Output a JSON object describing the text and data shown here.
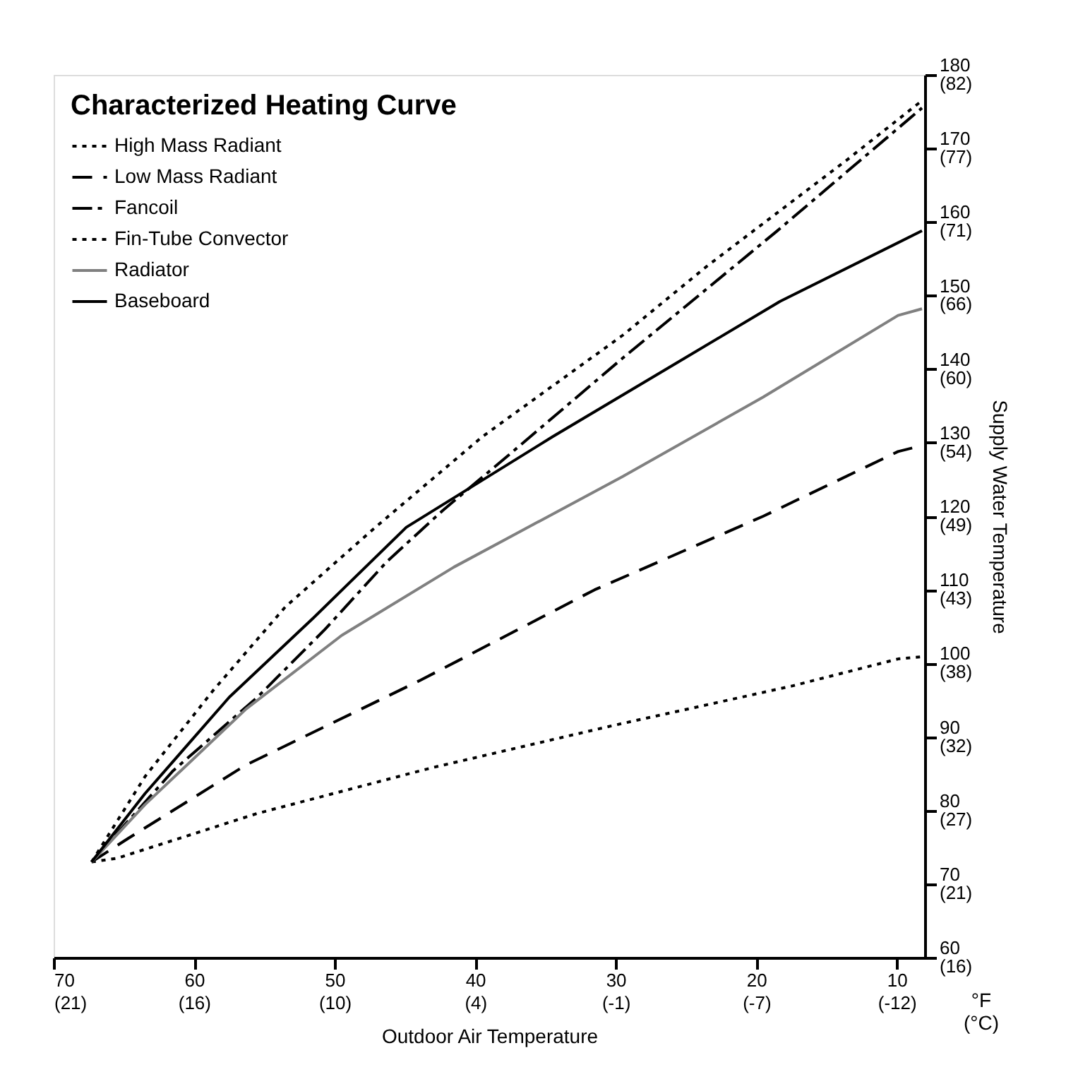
{
  "chart_data": {
    "type": "line",
    "legend_title": "Characterized Heating Curve",
    "xlabel": "Outdoor Air Temperature",
    "y2label": "Supply Water Temperature",
    "annotations": [
      "°F (°C)"
    ],
    "xlim": [
      70,
      8
    ],
    "xticks": [
      70,
      60,
      50,
      40,
      30,
      20,
      10
    ],
    "x2lim": [
      21.11,
      -13.33
    ],
    "x2ticks": [
      {
        "value": 21.11,
        "label": "(21)"
      },
      {
        "value": 15.56,
        "label": "(16)"
      },
      {
        "value": 10,
        "label": "(10)"
      },
      {
        "value": 4.44,
        "label": "(4)"
      },
      {
        "value": -1.11,
        "label": "(-1)"
      },
      {
        "value": -6.67,
        "label": "(-7)"
      },
      {
        "value": -12.22,
        "label": "(-12)"
      }
    ],
    "ylim": [
      60,
      180
    ],
    "yticks": [
      60,
      70,
      80,
      90,
      100,
      110,
      120,
      130,
      140,
      150,
      160,
      170,
      180
    ],
    "y2lim": [
      15.56,
      82.22
    ],
    "y2ticks": [
      {
        "value": 15.56,
        "label": "(16)"
      },
      {
        "value": 21.11,
        "label": "(21)"
      },
      {
        "value": 26.67,
        "label": "(27)"
      },
      {
        "value": 32.22,
        "label": "(32)"
      },
      {
        "value": 37.78,
        "label": "(38)"
      },
      {
        "value": 43.33,
        "label": "(43)"
      },
      {
        "value": 48.89,
        "label": "(49)"
      },
      {
        "value": 54.44,
        "label": "(54)"
      },
      {
        "value": 60,
        "label": "(60)"
      },
      {
        "value": 65.56,
        "label": "(66)"
      },
      {
        "value": 71.11,
        "label": "(71)"
      },
      {
        "value": 76.67,
        "label": "(77)"
      },
      {
        "value": 82.22,
        "label": "(82)"
      }
    ],
    "grid": false,
    "legend": "top left",
    "series": [
      {
        "name": "High Mass Radiant",
        "color": "#000000",
        "line_style": "dotted",
        "x": [
          67.3,
          65.5,
          55.5,
          43.1,
          30.3,
          17.5,
          9.9,
          8.2
        ],
        "values": [
          73,
          73.5,
          79.6,
          85.8,
          91.5,
          96.9,
          100.6,
          100.9
        ]
      },
      {
        "name": "Low Mass Radiant",
        "color": "#000000",
        "line_style": "dashed",
        "x": [
          67.3,
          64.7,
          56.3,
          43.9,
          31.5,
          19.5,
          9.9,
          8.2
        ],
        "values": [
          73,
          76.2,
          86.2,
          97.7,
          110,
          120,
          128.8,
          129.6
        ]
      },
      {
        "name": "Fancoil",
        "color": "#000000",
        "line_style": "dashdot",
        "x": [
          67.3,
          61.5,
          55.5,
          50.7,
          46.3,
          42.3,
          37.5,
          29.5,
          18.5,
          8.2
        ],
        "values": [
          73,
          85.4,
          95.4,
          104.6,
          113.8,
          120.8,
          128.5,
          141.5,
          158.8,
          175.5
        ]
      },
      {
        "name": "Fin-Tube Convector",
        "color": "#000000",
        "line_style": "dotted",
        "x": [
          67.3,
          63.5,
          58.7,
          53.5,
          47.1,
          39.5,
          29.5,
          23.5,
          13.5,
          8.2
        ],
        "values": [
          73,
          84.6,
          96.2,
          107.7,
          118.5,
          130.8,
          144.6,
          154,
          168.5,
          176.5
        ]
      },
      {
        "name": "Radiator",
        "color": "#808080",
        "line_style": "solid",
        "x": [
          67.3,
          63.5,
          56.3,
          49.5,
          41.5,
          29.5,
          19.5,
          9.9,
          8.2
        ],
        "values": [
          73,
          80.8,
          93.8,
          103.8,
          113.1,
          125.4,
          136.2,
          147.3,
          148.2
        ]
      },
      {
        "name": "Baseboard",
        "color": "#000000",
        "line_style": "solid",
        "x": [
          67.3,
          63.5,
          57.5,
          51.5,
          44.9,
          34.5,
          18.3,
          8.2
        ],
        "values": [
          73,
          82.3,
          95.4,
          106.2,
          118.5,
          130.8,
          149.2,
          158.8
        ]
      }
    ]
  }
}
